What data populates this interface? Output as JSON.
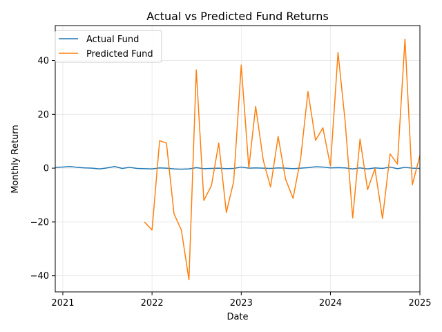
{
  "chart_data": {
    "type": "line",
    "title": "Actual vs Predicted Fund Returns",
    "xlabel": "Date",
    "ylabel": "Monthly Return",
    "xlim": [
      "2020-12-01",
      "2025-01-01"
    ],
    "ylim": [
      -46,
      53
    ],
    "x_ticks": [
      "2021-01-01",
      "2022-01-01",
      "2023-01-01",
      "2024-01-01",
      "2025-01-01"
    ],
    "x_tick_labels": [
      "2021",
      "2022",
      "2023",
      "2024",
      "2025"
    ],
    "y_ticks": [
      -40,
      -20,
      0,
      20,
      40
    ],
    "y_tick_labels": [
      "−40",
      "−20",
      "0",
      "20",
      "40"
    ],
    "grid": true,
    "legend_position": "top-left",
    "series": [
      {
        "name": "Actual Fund",
        "color": "#1f77b4",
        "points": [
          [
            "2020-12-01",
            0.3
          ],
          [
            "2021-01-01",
            0.4
          ],
          [
            "2021-02-01",
            0.6
          ],
          [
            "2021-03-01",
            0.3
          ],
          [
            "2021-04-01",
            0.1
          ],
          [
            "2021-05-01",
            0.0
          ],
          [
            "2021-06-01",
            -0.3
          ],
          [
            "2021-07-01",
            0.1
          ],
          [
            "2021-08-01",
            0.6
          ],
          [
            "2021-09-01",
            -0.1
          ],
          [
            "2021-10-01",
            0.3
          ],
          [
            "2021-11-01",
            -0.1
          ],
          [
            "2021-12-01",
            -0.2
          ],
          [
            "2022-01-01",
            -0.3
          ],
          [
            "2022-02-01",
            0.1
          ],
          [
            "2022-03-01",
            0.0
          ],
          [
            "2022-04-01",
            -0.3
          ],
          [
            "2022-05-01",
            -0.4
          ],
          [
            "2022-06-01",
            -0.3
          ],
          [
            "2022-07-01",
            0.2
          ],
          [
            "2022-08-01",
            -0.2
          ],
          [
            "2022-09-01",
            -0.1
          ],
          [
            "2022-10-01",
            0.0
          ],
          [
            "2022-11-01",
            -0.2
          ],
          [
            "2022-12-01",
            -0.1
          ],
          [
            "2023-01-01",
            0.4
          ],
          [
            "2023-02-01",
            0.0
          ],
          [
            "2023-03-01",
            0.1
          ],
          [
            "2023-04-01",
            0.0
          ],
          [
            "2023-05-01",
            -0.1
          ],
          [
            "2023-06-01",
            0.1
          ],
          [
            "2023-07-01",
            0.0
          ],
          [
            "2023-08-01",
            -0.2
          ],
          [
            "2023-09-01",
            0.0
          ],
          [
            "2023-10-01",
            0.2
          ],
          [
            "2023-11-01",
            0.5
          ],
          [
            "2023-12-01",
            0.4
          ],
          [
            "2024-01-01",
            0.1
          ],
          [
            "2024-02-01",
            0.2
          ],
          [
            "2024-03-01",
            0.1
          ],
          [
            "2024-04-01",
            -0.3
          ],
          [
            "2024-05-01",
            0.1
          ],
          [
            "2024-06-01",
            -0.3
          ],
          [
            "2024-07-01",
            0.1
          ],
          [
            "2024-08-01",
            -0.1
          ],
          [
            "2024-09-01",
            0.4
          ],
          [
            "2024-10-01",
            -0.2
          ],
          [
            "2024-11-01",
            0.3
          ],
          [
            "2024-12-01",
            0.0
          ],
          [
            "2025-01-01",
            -0.1
          ]
        ]
      },
      {
        "name": "Predicted Fund",
        "color": "#ff7f0e",
        "points": [
          [
            "2021-12-01",
            -20.0
          ],
          [
            "2022-01-01",
            -23.0
          ],
          [
            "2022-02-01",
            10.2
          ],
          [
            "2022-03-01",
            9.3
          ],
          [
            "2022-04-01",
            -17.0
          ],
          [
            "2022-05-01",
            -23.0
          ],
          [
            "2022-06-01",
            -41.5
          ],
          [
            "2022-07-01",
            36.5
          ],
          [
            "2022-08-01",
            -12.0
          ],
          [
            "2022-09-01",
            -6.5
          ],
          [
            "2022-10-01",
            9.3
          ],
          [
            "2022-11-01",
            -16.5
          ],
          [
            "2022-12-01",
            -5.0
          ],
          [
            "2023-01-01",
            38.3
          ],
          [
            "2023-02-01",
            0.0
          ],
          [
            "2023-03-01",
            23.0
          ],
          [
            "2023-04-01",
            3.0
          ],
          [
            "2023-05-01",
            -7.0
          ],
          [
            "2023-06-01",
            11.8
          ],
          [
            "2023-07-01",
            -4.0
          ],
          [
            "2023-08-01",
            -11.2
          ],
          [
            "2023-09-01",
            3.5
          ],
          [
            "2023-10-01",
            28.5
          ],
          [
            "2023-11-01",
            10.3
          ],
          [
            "2023-12-01",
            15.0
          ],
          [
            "2024-01-01",
            0.8
          ],
          [
            "2024-02-01",
            43.0
          ],
          [
            "2024-03-01",
            17.5
          ],
          [
            "2024-04-01",
            -18.5
          ],
          [
            "2024-05-01",
            10.8
          ],
          [
            "2024-06-01",
            -8.0
          ],
          [
            "2024-07-01",
            -0.2
          ],
          [
            "2024-08-01",
            -18.7
          ],
          [
            "2024-09-01",
            5.3
          ],
          [
            "2024-10-01",
            1.5
          ],
          [
            "2024-11-01",
            48.0
          ],
          [
            "2024-12-01",
            -6.2
          ],
          [
            "2025-01-01",
            4.7
          ]
        ]
      }
    ]
  }
}
